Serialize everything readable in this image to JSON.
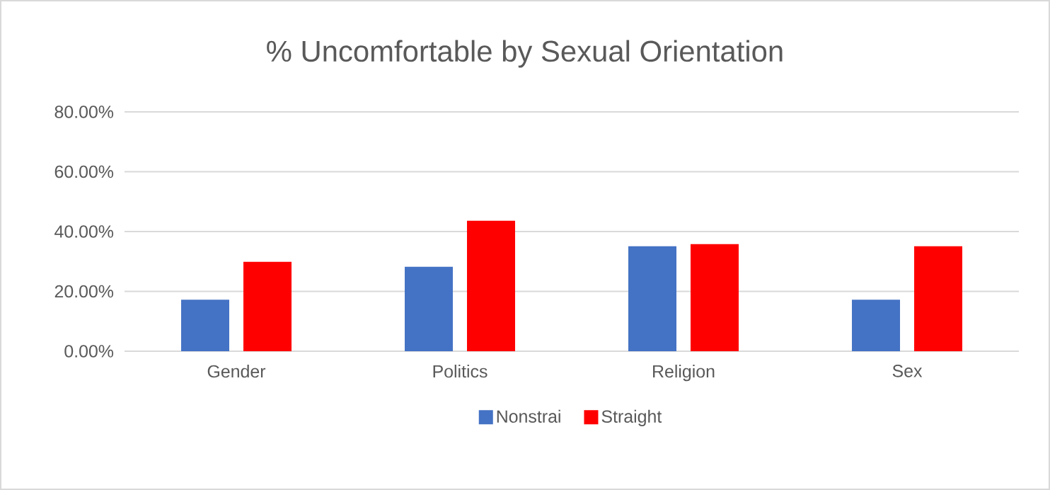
{
  "chart_data": {
    "type": "bar",
    "title": "% Uncomfortable by Sexual Orientation",
    "categories": [
      "Gender",
      "Politics",
      "Religion",
      "Sex"
    ],
    "series": [
      {
        "name": "Nonstrai",
        "color": "#4472c4",
        "values": [
          17.2,
          28.2,
          35.1,
          17.2
        ]
      },
      {
        "name": "Straight",
        "color": "#ff0000",
        "values": [
          29.9,
          43.6,
          35.8,
          35.1
        ]
      }
    ],
    "ylim": [
      0,
      80
    ],
    "yticks": [
      {
        "value": 0,
        "label": "0.00%"
      },
      {
        "value": 20,
        "label": "20.00%"
      },
      {
        "value": 40,
        "label": "40.00%"
      },
      {
        "value": 60,
        "label": "60.00%"
      },
      {
        "value": 80,
        "label": "80.00%"
      }
    ],
    "grid": "y",
    "legend": "bottom"
  }
}
